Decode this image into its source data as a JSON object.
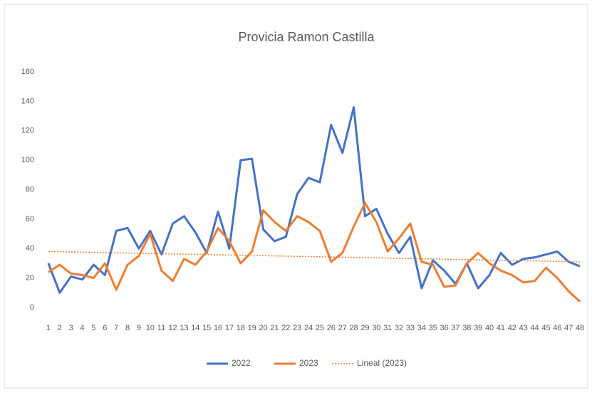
{
  "chart_data": {
    "type": "line",
    "title": "Provicia Ramon Castilla",
    "categories": [
      "1",
      "2",
      "3",
      "4",
      "5",
      "6",
      "7",
      "8",
      "9",
      "10",
      "11",
      "12",
      "13",
      "14",
      "15",
      "16",
      "17",
      "18",
      "19",
      "20",
      "21",
      "22",
      "23",
      "24",
      "25",
      "26",
      "27",
      "28",
      "29",
      "30",
      "31",
      "32",
      "33",
      "34",
      "35",
      "36",
      "37",
      "38",
      "39",
      "40",
      "41",
      "42",
      "43",
      "44",
      "45",
      "46",
      "47",
      "48"
    ],
    "series": [
      {
        "name": "2022",
        "color": "#4472c4",
        "values": [
          30,
          10,
          21,
          19,
          29,
          22,
          52,
          54,
          40,
          52,
          36,
          57,
          62,
          51,
          37,
          65,
          40,
          100,
          101,
          53,
          45,
          48,
          77,
          88,
          85,
          124,
          105,
          136,
          62,
          67,
          50,
          37,
          48,
          13,
          32,
          25,
          16,
          30,
          13,
          22,
          37,
          29,
          33,
          34,
          36,
          38,
          31,
          28
        ]
      },
      {
        "name": "2023",
        "color": "#ed7d31",
        "values": [
          24,
          29,
          23,
          22,
          20,
          30,
          12,
          29,
          35,
          50,
          25,
          18,
          33,
          29,
          38,
          54,
          45,
          30,
          38,
          66,
          58,
          52,
          62,
          58,
          52,
          31,
          37,
          55,
          71,
          58,
          38,
          47,
          57,
          31,
          29,
          14,
          15,
          30,
          37,
          30,
          25,
          22,
          17,
          18,
          27,
          20,
          11,
          4
        ]
      }
    ],
    "trendline": {
      "name": "Lineal (2023)",
      "color": "#ed7d31",
      "x": [
        1,
        48
      ],
      "values": [
        38,
        31
      ]
    },
    "ylim": [
      0,
      160
    ],
    "yticks": [
      0,
      20,
      40,
      60,
      80,
      100,
      120,
      140,
      160
    ],
    "grid": false
  }
}
